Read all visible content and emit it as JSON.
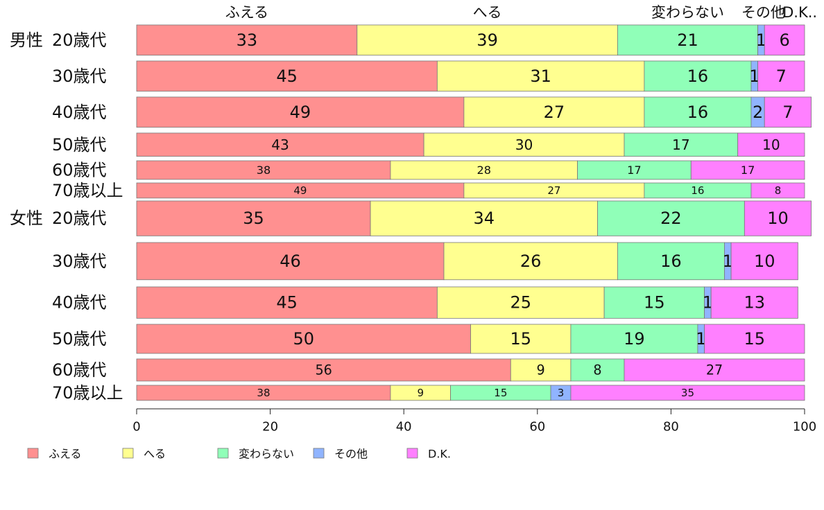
{
  "chart_data": {
    "type": "bar",
    "orientation": "horizontal",
    "stacked": true,
    "categories": [
      {
        "group": "男性",
        "label": "20歳代"
      },
      {
        "group": "",
        "label": "30歳代"
      },
      {
        "group": "",
        "label": "40歳代"
      },
      {
        "group": "",
        "label": "50歳代"
      },
      {
        "group": "",
        "label": "60歳代"
      },
      {
        "group": "",
        "label": "70歳以上"
      },
      {
        "group": "女性",
        "label": "20歳代"
      },
      {
        "group": "",
        "label": "30歳代"
      },
      {
        "group": "",
        "label": "40歳代"
      },
      {
        "group": "",
        "label": "50歳代"
      },
      {
        "group": "",
        "label": "60歳代"
      },
      {
        "group": "",
        "label": "70歳以上"
      }
    ],
    "row_weights": [
      2.6,
      2.6,
      2.6,
      2.0,
      1.6,
      1.3,
      3.0,
      3.2,
      2.7,
      2.5,
      1.9,
      1.3
    ],
    "series": [
      {
        "name": "ふえる",
        "color": "#ff9090",
        "values": [
          33,
          45,
          49,
          43,
          38,
          49,
          35,
          46,
          45,
          50,
          56,
          38
        ]
      },
      {
        "name": "へる",
        "color": "#ffff90",
        "values": [
          39,
          31,
          27,
          30,
          28,
          27,
          34,
          26,
          25,
          15,
          9,
          9
        ]
      },
      {
        "name": "変わらない",
        "color": "#90ffb8",
        "values": [
          21,
          16,
          16,
          17,
          17,
          16,
          22,
          16,
          15,
          19,
          8,
          15
        ]
      },
      {
        "name": "その他",
        "color": "#90b4ff",
        "values": [
          1,
          1,
          2,
          0,
          0,
          0,
          0,
          1,
          1,
          1,
          0,
          3
        ]
      },
      {
        "name": "D.K.",
        "color": "#ff80ff",
        "values": [
          6,
          7,
          7,
          10,
          17,
          8,
          10,
          10,
          13,
          15,
          27,
          35
        ]
      }
    ],
    "top_labels": [
      "ふえる",
      "へる",
      "変わらない",
      "その他",
      "D.K.."
    ],
    "xlim": [
      0,
      100
    ],
    "xticks": [
      0,
      20,
      40,
      60,
      80,
      100
    ],
    "legend_position": "bottom"
  }
}
